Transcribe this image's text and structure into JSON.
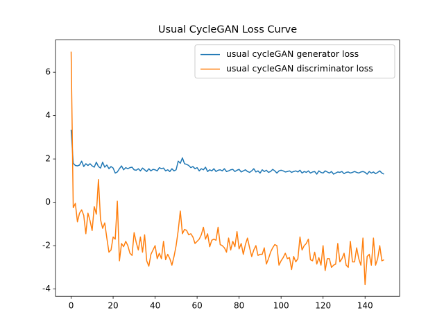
{
  "chart_data": {
    "type": "line",
    "title": "Usual CycleGAN Loss Curve",
    "x": [
      0,
      1,
      2,
      3,
      4,
      5,
      6,
      7,
      8,
      9,
      10,
      11,
      12,
      13,
      14,
      15,
      16,
      17,
      18,
      19,
      20,
      21,
      22,
      23,
      24,
      25,
      26,
      27,
      28,
      29,
      30,
      31,
      32,
      33,
      34,
      35,
      36,
      37,
      38,
      39,
      40,
      41,
      42,
      43,
      44,
      45,
      46,
      47,
      48,
      49,
      50,
      51,
      52,
      53,
      54,
      55,
      56,
      57,
      58,
      59,
      60,
      61,
      62,
      63,
      64,
      65,
      66,
      67,
      68,
      69,
      70,
      71,
      72,
      73,
      74,
      75,
      76,
      77,
      78,
      79,
      80,
      81,
      82,
      83,
      84,
      85,
      86,
      87,
      88,
      89,
      90,
      91,
      92,
      93,
      94,
      95,
      96,
      97,
      98,
      99,
      100,
      101,
      102,
      103,
      104,
      105,
      106,
      107,
      108,
      109,
      110,
      111,
      112,
      113,
      114,
      115,
      116,
      117,
      118,
      119,
      120,
      121,
      122,
      123,
      124,
      125,
      126,
      127,
      128,
      129,
      130,
      131,
      132,
      133,
      134,
      135,
      136,
      137,
      138,
      139,
      140,
      141,
      142,
      143,
      144,
      145,
      146,
      147,
      148,
      149
    ],
    "series": [
      {
        "name": "usual cycleGAN generator loss",
        "color": "#1f77b4",
        "values": [
          3.35,
          1.8,
          1.7,
          1.68,
          1.72,
          1.9,
          1.65,
          1.78,
          1.7,
          1.78,
          1.68,
          1.62,
          1.85,
          1.65,
          1.58,
          1.85,
          1.62,
          1.72,
          1.55,
          1.65,
          1.58,
          1.35,
          1.4,
          1.55,
          1.68,
          1.5,
          1.6,
          1.55,
          1.6,
          1.62,
          1.5,
          1.48,
          1.55,
          1.45,
          1.58,
          1.5,
          1.42,
          1.55,
          1.45,
          1.52,
          1.5,
          1.45,
          1.6,
          1.55,
          1.58,
          1.45,
          1.5,
          1.42,
          1.55,
          1.45,
          1.5,
          1.9,
          1.8,
          2.05,
          1.78,
          1.75,
          1.7,
          1.6,
          1.65,
          1.55,
          1.6,
          1.45,
          1.55,
          1.5,
          1.62,
          1.42,
          1.5,
          1.45,
          1.55,
          1.42,
          1.48,
          1.5,
          1.45,
          1.55,
          1.42,
          1.45,
          1.5,
          1.52,
          1.42,
          1.48,
          1.52,
          1.4,
          1.45,
          1.5,
          1.42,
          1.38,
          1.45,
          1.55,
          1.4,
          1.45,
          1.35,
          1.5,
          1.42,
          1.48,
          1.38,
          1.42,
          1.52,
          1.45,
          1.35,
          1.45,
          1.48,
          1.45,
          1.4,
          1.42,
          1.45,
          1.38,
          1.42,
          1.45,
          1.4,
          1.48,
          1.35,
          1.42,
          1.38,
          1.45,
          1.35,
          1.4,
          1.42,
          1.3,
          1.45,
          1.38,
          1.35,
          1.45,
          1.4,
          1.35,
          1.42,
          1.3,
          1.35,
          1.4,
          1.38,
          1.42,
          1.32,
          1.38,
          1.4,
          1.35,
          1.38,
          1.42,
          1.38,
          1.35,
          1.4,
          1.42,
          1.38,
          1.3,
          1.42,
          1.35,
          1.4,
          1.32,
          1.38,
          1.45,
          1.35,
          1.3
        ]
      },
      {
        "name": "usual cycleGAN discriminator loss",
        "color": "#ff7f0e",
        "values": [
          6.95,
          -0.25,
          -0.05,
          -0.9,
          -0.5,
          -0.35,
          -0.6,
          -1.45,
          -0.5,
          -0.85,
          -1.3,
          -0.2,
          -0.55,
          1.05,
          -0.8,
          -1.2,
          -0.95,
          -1.65,
          -2.3,
          -2.2,
          -1.6,
          -1.7,
          0.05,
          -2.7,
          -1.9,
          -2.05,
          -1.8,
          -2.0,
          -2.35,
          -2.45,
          -1.4,
          -1.85,
          -2.2,
          -1.6,
          -2.3,
          -1.5,
          -2.7,
          -2.95,
          -2.4,
          -2.2,
          -2.0,
          -2.6,
          -2.35,
          -2.6,
          -1.8,
          -2.65,
          -2.4,
          -2.6,
          -2.9,
          -2.5,
          -2.0,
          -1.3,
          -0.4,
          -1.45,
          -1.25,
          -1.3,
          -1.5,
          -1.45,
          -1.6,
          -1.9,
          -1.8,
          -1.7,
          -1.5,
          -1.15,
          -1.7,
          -1.45,
          -2.05,
          -1.75,
          -1.7,
          -1.75,
          -1.15,
          -1.95,
          -2.0,
          -2.1,
          -2.3,
          -1.65,
          -2.2,
          -1.8,
          -2.05,
          -1.35,
          -2.15,
          -1.9,
          -2.4,
          -1.95,
          -1.65,
          -2.1,
          -2.5,
          -2.2,
          -2.0,
          -2.45,
          -2.4,
          -2.4,
          -2.1,
          -2.85,
          -2.6,
          -2.3,
          -2.1,
          -1.95,
          -2.0,
          -2.9,
          -2.7,
          -2.55,
          -2.35,
          -2.6,
          -2.55,
          -3.1,
          -2.5,
          -2.75,
          -2.6,
          -1.6,
          -2.2,
          -2.0,
          -1.9,
          -1.7,
          -2.65,
          -2.7,
          -2.3,
          -2.85,
          -2.55,
          -2.9,
          -2.0,
          -3.15,
          -2.6,
          -2.6,
          -3.0,
          -2.9,
          -2.85,
          -1.9,
          -2.75,
          -2.6,
          -2.35,
          -2.9,
          -3.0,
          -1.8,
          -2.75,
          -2.75,
          -2.1,
          -2.6,
          -2.9,
          -1.65,
          -3.8,
          -2.5,
          -2.4,
          -2.9,
          -1.65,
          -2.9,
          -2.6,
          -2.0,
          -2.7,
          -2.65
        ]
      }
    ],
    "xlim": [
      -7.45,
      156.45
    ],
    "xticks": [
      0,
      20,
      40,
      60,
      80,
      100,
      120,
      140
    ],
    "ylim": [
      -4.34,
      7.49
    ],
    "yticks": [
      -4,
      -2,
      0,
      2,
      4,
      6
    ],
    "legend": "upper right"
  }
}
